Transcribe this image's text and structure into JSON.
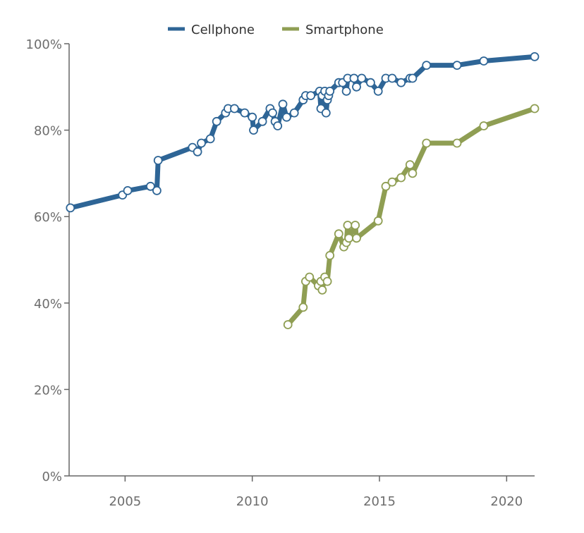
{
  "chart_data": {
    "type": "line",
    "title": "",
    "xlabel": "",
    "ylabel": "",
    "xlim": [
      2002.8,
      2021.1
    ],
    "ylim": [
      0,
      100
    ],
    "x_ticks": [
      {
        "value": 2005,
        "label": "2005"
      },
      {
        "value": 2010,
        "label": "2010"
      },
      {
        "value": 2015,
        "label": "2015"
      },
      {
        "value": 2020,
        "label": "2020"
      }
    ],
    "y_ticks": [
      {
        "value": 0,
        "label": "0%"
      },
      {
        "value": 20,
        "label": "20%"
      },
      {
        "value": 40,
        "label": "40%"
      },
      {
        "value": 60,
        "label": "60%"
      },
      {
        "value": 80,
        "label": "80%"
      },
      {
        "value": 100,
        "label": "100%"
      }
    ],
    "legend_position": "top-center",
    "grid": false,
    "series": [
      {
        "name": "Cellphone",
        "color": "#2e6596",
        "points": [
          [
            2002.85,
            62
          ],
          [
            2004.9,
            65
          ],
          [
            2005.1,
            66
          ],
          [
            2006.0,
            67
          ],
          [
            2006.25,
            66
          ],
          [
            2006.3,
            73
          ],
          [
            2007.65,
            76
          ],
          [
            2007.85,
            75
          ],
          [
            2008.0,
            77
          ],
          [
            2008.35,
            78
          ],
          [
            2008.6,
            82
          ],
          [
            2008.95,
            84
          ],
          [
            2009.05,
            85
          ],
          [
            2009.3,
            85
          ],
          [
            2009.7,
            84
          ],
          [
            2010.0,
            83
          ],
          [
            2010.05,
            80
          ],
          [
            2010.4,
            82
          ],
          [
            2010.7,
            85
          ],
          [
            2010.8,
            84
          ],
          [
            2010.9,
            82
          ],
          [
            2011.0,
            81
          ],
          [
            2011.2,
            86
          ],
          [
            2011.35,
            83
          ],
          [
            2011.65,
            84
          ],
          [
            2012.0,
            87
          ],
          [
            2012.1,
            88
          ],
          [
            2012.3,
            88
          ],
          [
            2012.65,
            89
          ],
          [
            2012.7,
            85
          ],
          [
            2012.75,
            88
          ],
          [
            2012.85,
            89
          ],
          [
            2012.9,
            84
          ],
          [
            2012.95,
            87
          ],
          [
            2013.0,
            88
          ],
          [
            2013.05,
            89
          ],
          [
            2013.4,
            91
          ],
          [
            2013.55,
            91
          ],
          [
            2013.7,
            89
          ],
          [
            2013.75,
            92
          ],
          [
            2014.0,
            92
          ],
          [
            2014.1,
            90
          ],
          [
            2014.3,
            92
          ],
          [
            2014.65,
            91
          ],
          [
            2014.95,
            89
          ],
          [
            2015.25,
            92
          ],
          [
            2015.5,
            92
          ],
          [
            2015.85,
            91
          ],
          [
            2016.2,
            92
          ],
          [
            2016.3,
            92
          ],
          [
            2016.85,
            95
          ],
          [
            2018.05,
            95
          ],
          [
            2019.1,
            96
          ],
          [
            2021.1,
            97
          ]
        ]
      },
      {
        "name": "Smartphone",
        "color": "#8f9e53",
        "points": [
          [
            2011.4,
            35
          ],
          [
            2012.0,
            39
          ],
          [
            2012.1,
            45
          ],
          [
            2012.25,
            46
          ],
          [
            2012.6,
            44
          ],
          [
            2012.7,
            45
          ],
          [
            2012.75,
            43
          ],
          [
            2012.85,
            46
          ],
          [
            2012.95,
            45
          ],
          [
            2013.05,
            51
          ],
          [
            2013.4,
            56
          ],
          [
            2013.6,
            53
          ],
          [
            2013.7,
            54
          ],
          [
            2013.75,
            58
          ],
          [
            2013.8,
            55
          ],
          [
            2014.05,
            58
          ],
          [
            2014.1,
            55
          ],
          [
            2014.95,
            59
          ],
          [
            2015.25,
            67
          ],
          [
            2015.5,
            68
          ],
          [
            2015.85,
            69
          ],
          [
            2016.2,
            72
          ],
          [
            2016.3,
            70
          ],
          [
            2016.85,
            77
          ],
          [
            2018.05,
            77
          ],
          [
            2019.1,
            81
          ],
          [
            2021.1,
            85
          ]
        ]
      }
    ]
  }
}
